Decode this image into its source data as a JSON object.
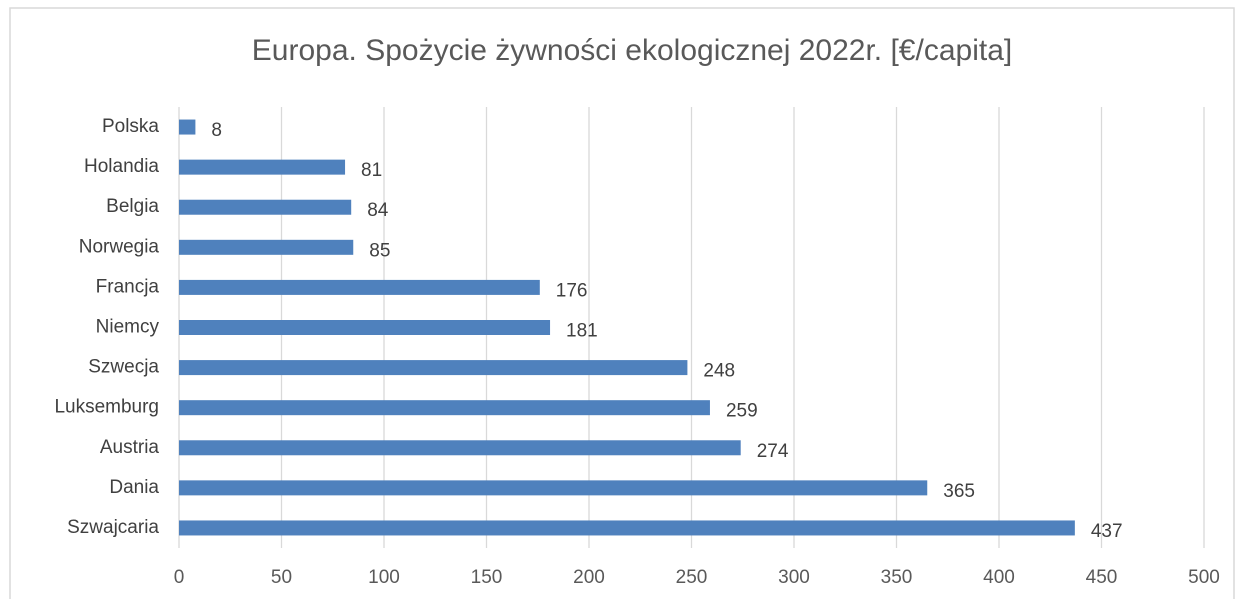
{
  "chart_data": {
    "type": "bar",
    "orientation": "horizontal",
    "title": "Europa. Spożycie żywności ekologicznej 2022r. [€/capita]",
    "categories": [
      "Polska",
      "Holandia",
      "Belgia",
      "Norwegia",
      "Francja",
      "Niemcy",
      "Szwecja",
      "Luksemburg",
      "Austria",
      "Dania",
      "Szwajcaria"
    ],
    "values": [
      8,
      81,
      84,
      85,
      176,
      181,
      248,
      259,
      274,
      365,
      437
    ],
    "color": "#4f81bd",
    "xlim": [
      0,
      500
    ],
    "xticks": [
      0,
      50,
      100,
      150,
      200,
      250,
      300,
      350,
      400,
      450,
      500
    ],
    "grid": true
  }
}
